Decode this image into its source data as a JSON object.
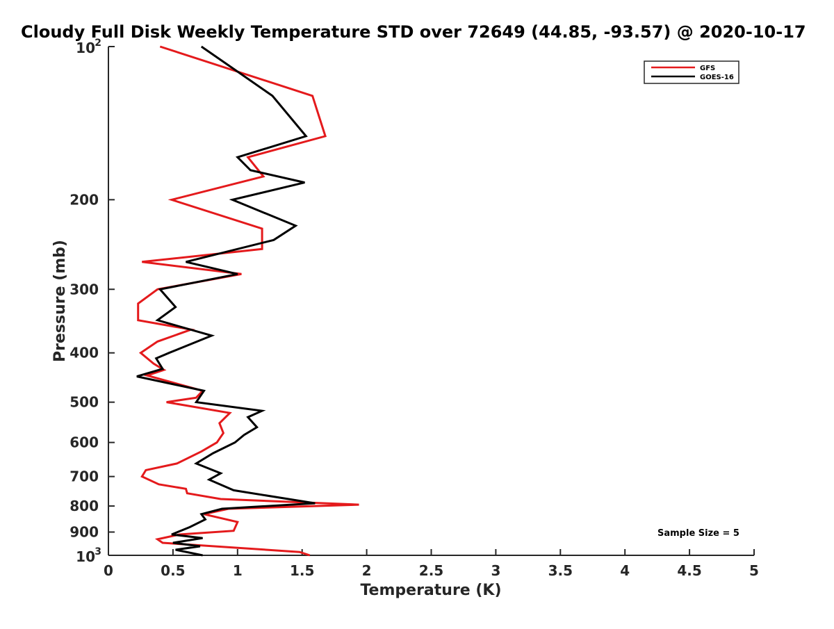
{
  "chart_data": {
    "type": "line",
    "title": "Cloudy Full Disk Weekly Temperature STD over 72649 (44.85, -93.57) @ 2020-10-17",
    "xlabel": "Temperature (K)",
    "ylabel": "Pressure (mb)",
    "xlim": [
      0,
      5
    ],
    "ylim": [
      100,
      1000
    ],
    "y_scale": "log",
    "y_reversed": true,
    "grid": false,
    "legend_position": "top-right",
    "x_ticks": [
      {
        "value": 0,
        "label": "0"
      },
      {
        "value": 0.5,
        "label": "0.5"
      },
      {
        "value": 1,
        "label": "1"
      },
      {
        "value": 1.5,
        "label": "1.5"
      },
      {
        "value": 2,
        "label": "2"
      },
      {
        "value": 2.5,
        "label": "2.5"
      },
      {
        "value": 3,
        "label": "3"
      },
      {
        "value": 3.5,
        "label": "3.5"
      },
      {
        "value": 4,
        "label": "4"
      },
      {
        "value": 4.5,
        "label": "4.5"
      },
      {
        "value": 5,
        "label": "5"
      }
    ],
    "y_ticks": [
      {
        "value": 100,
        "base": "10",
        "exp": "2"
      },
      {
        "value": 200,
        "base": "200",
        "exp": ""
      },
      {
        "value": 300,
        "base": "300",
        "exp": ""
      },
      {
        "value": 400,
        "base": "400",
        "exp": ""
      },
      {
        "value": 500,
        "base": "500",
        "exp": ""
      },
      {
        "value": 600,
        "base": "600",
        "exp": ""
      },
      {
        "value": 700,
        "base": "700",
        "exp": ""
      },
      {
        "value": 800,
        "base": "800",
        "exp": ""
      },
      {
        "value": 900,
        "base": "900",
        "exp": ""
      },
      {
        "value": 1000,
        "base": "10",
        "exp": "3"
      }
    ],
    "series": [
      {
        "name": "GFS",
        "color": "#e41a1c",
        "x": [
          0.4,
          1.58,
          1.68,
          1.08,
          1.2,
          0.49,
          1.19,
          1.19,
          0.26,
          1.03,
          0.38,
          0.23,
          0.23,
          0.64,
          0.38,
          0.25,
          0.35,
          0.43,
          0.3,
          0.73,
          0.68,
          0.45,
          0.94,
          0.86,
          0.89,
          0.84,
          0.72,
          0.53,
          0.29,
          0.26,
          0.39,
          0.6,
          0.61,
          0.87,
          1.94,
          0.93,
          0.74,
          1.0,
          0.97,
          0.55,
          0.38,
          0.42,
          1.48,
          1.56
        ],
        "y": [
          100,
          125,
          150,
          165,
          180,
          200,
          228,
          250,
          265,
          280,
          300,
          320,
          345,
          360,
          380,
          400,
          420,
          432,
          443,
          475,
          490,
          500,
          525,
          550,
          575,
          600,
          625,
          660,
          680,
          700,
          725,
          740,
          755,
          775,
          795,
          810,
          830,
          860,
          895,
          910,
          930,
          945,
          985,
          1000
        ]
      },
      {
        "name": "GOES-16",
        "color": "#000000",
        "x": [
          0.72,
          1.0,
          1.27,
          1.53,
          1.0,
          1.1,
          1.52,
          0.96,
          1.45,
          1.28,
          0.6,
          1.0,
          0.4,
          0.52,
          0.38,
          0.8,
          0.47,
          0.37,
          0.42,
          0.22,
          0.74,
          0.68,
          1.19,
          1.08,
          1.15,
          1.05,
          0.98,
          0.81,
          0.68,
          0.87,
          0.78,
          0.97,
          1.6,
          0.88,
          0.72,
          0.75,
          0.63,
          0.49,
          0.73,
          0.5,
          0.71,
          0.52,
          0.73
        ],
        "y": [
          100,
          112,
          125,
          150,
          165,
          175,
          185,
          200,
          225,
          240,
          265,
          280,
          300,
          325,
          345,
          370,
          400,
          410,
          430,
          445,
          475,
          500,
          520,
          535,
          560,
          580,
          600,
          630,
          660,
          690,
          710,
          745,
          790,
          810,
          830,
          850,
          880,
          910,
          925,
          945,
          960,
          975,
          1000
        ]
      }
    ],
    "annotation": "Sample Size = 5"
  }
}
